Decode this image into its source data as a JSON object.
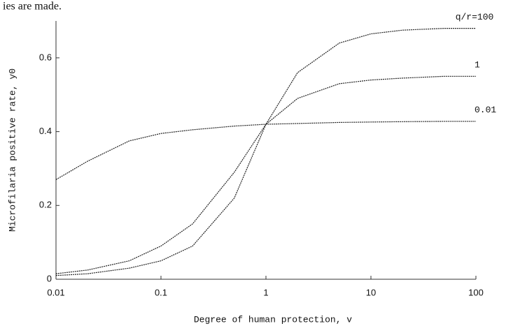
{
  "caption_fragment": "ies are made.",
  "chart_data": {
    "type": "line",
    "xlabel": "Degree of human protection, v",
    "ylabel": "Microfilaria positive rate, y0",
    "log_x": true,
    "x": [
      0.01,
      0.02,
      0.05,
      0.1,
      0.2,
      0.5,
      1,
      2,
      5,
      10,
      20,
      50,
      100
    ],
    "series": [
      {
        "name": "q/r=100",
        "color": "#222222",
        "values": [
          0.01,
          0.015,
          0.03,
          0.05,
          0.09,
          0.22,
          0.42,
          0.56,
          0.64,
          0.665,
          0.675,
          0.68,
          0.68
        ]
      },
      {
        "name": "1",
        "color": "#222222",
        "values": [
          0.015,
          0.025,
          0.05,
          0.09,
          0.15,
          0.29,
          0.42,
          0.49,
          0.53,
          0.54,
          0.545,
          0.55,
          0.55
        ]
      },
      {
        "name": "0.01",
        "color": "#222222",
        "values": [
          0.27,
          0.32,
          0.375,
          0.395,
          0.405,
          0.415,
          0.42,
          0.422,
          0.425,
          0.426,
          0.427,
          0.428,
          0.428
        ]
      }
    ],
    "xlim": [
      0.01,
      100
    ],
    "xticks": [
      0.01,
      0.1,
      1,
      10,
      100
    ],
    "ylim": [
      0,
      0.7
    ],
    "yticks": [
      0,
      0.2,
      0.4,
      0.6
    ]
  }
}
